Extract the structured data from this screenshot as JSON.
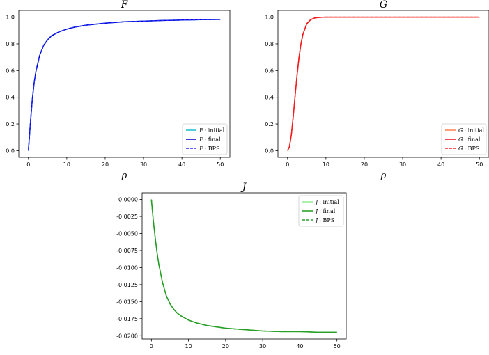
{
  "chart_data": [
    {
      "id": "F",
      "type": "line",
      "title": "F",
      "xlabel": "ρ",
      "ylabel": "",
      "xlim": [
        -2.5,
        52.5
      ],
      "ylim": [
        -0.05,
        1.05
      ],
      "xticks": [
        0,
        10,
        20,
        30,
        40,
        50
      ],
      "yticks": [
        0.0,
        0.2,
        0.4,
        0.6,
        0.8,
        1.0
      ],
      "ytick_labels": [
        "0.0",
        "0.2",
        "0.4",
        "0.6",
        "0.8",
        "1.0"
      ],
      "legend_position": "lower right",
      "grid": false,
      "series": [
        {
          "name": "F : initial",
          "var": "F",
          "label": ": initial",
          "color": "#17becf",
          "style": "solid",
          "x": [
            0,
            0.5,
            1,
            1.5,
            2,
            3,
            4,
            5,
            6,
            7,
            8,
            10,
            12,
            15,
            20,
            25,
            30,
            35,
            40,
            45,
            50
          ],
          "y": [
            0.0,
            0.2,
            0.38,
            0.51,
            0.6,
            0.72,
            0.79,
            0.83,
            0.86,
            0.875,
            0.89,
            0.91,
            0.925,
            0.94,
            0.955,
            0.965,
            0.97,
            0.975,
            0.978,
            0.981,
            0.983
          ]
        },
        {
          "name": "F : final",
          "var": "F",
          "label": ": final",
          "color": "#0000cc",
          "style": "solid",
          "x": [
            0,
            0.5,
            1,
            1.5,
            2,
            3,
            4,
            5,
            6,
            7,
            8,
            10,
            12,
            15,
            20,
            25,
            30,
            35,
            40,
            45,
            50
          ],
          "y": [
            0.0,
            0.2,
            0.38,
            0.51,
            0.6,
            0.72,
            0.79,
            0.83,
            0.86,
            0.875,
            0.89,
            0.91,
            0.925,
            0.94,
            0.955,
            0.965,
            0.97,
            0.975,
            0.978,
            0.981,
            0.983
          ]
        },
        {
          "name": "F : BPS",
          "var": "F",
          "label": ": BPS",
          "color": "#2b2bff",
          "style": "dashed",
          "x": [
            0,
            0.5,
            1,
            1.5,
            2,
            3,
            4,
            5,
            6,
            7,
            8,
            10,
            12,
            15,
            20,
            25,
            30,
            35,
            40,
            45,
            50
          ],
          "y": [
            0.0,
            0.2,
            0.38,
            0.51,
            0.6,
            0.72,
            0.79,
            0.83,
            0.86,
            0.875,
            0.89,
            0.91,
            0.925,
            0.94,
            0.955,
            0.965,
            0.97,
            0.975,
            0.978,
            0.981,
            0.983
          ]
        }
      ]
    },
    {
      "id": "G",
      "type": "line",
      "title": "G",
      "xlabel": "ρ",
      "ylabel": "",
      "xlim": [
        -2.5,
        52.5
      ],
      "ylim": [
        -0.05,
        1.05
      ],
      "xticks": [
        0,
        10,
        20,
        30,
        40,
        50
      ],
      "yticks": [
        0.0,
        0.2,
        0.4,
        0.6,
        0.8,
        1.0
      ],
      "ytick_labels": [
        "0.0",
        "0.2",
        "0.4",
        "0.6",
        "0.8",
        "1.0"
      ],
      "legend_position": "lower right",
      "grid": false,
      "series": [
        {
          "name": "G : initial",
          "var": "G",
          "label": ": initial",
          "color": "#ff7f50",
          "style": "solid",
          "x": [
            0,
            0.5,
            1,
            1.5,
            2,
            2.5,
            3,
            3.5,
            4,
            5,
            6,
            7,
            8,
            9,
            10,
            15,
            20,
            30,
            40,
            50
          ],
          "y": [
            0.0,
            0.03,
            0.12,
            0.26,
            0.42,
            0.57,
            0.7,
            0.8,
            0.87,
            0.95,
            0.98,
            0.993,
            0.997,
            0.999,
            1.0,
            1.0,
            1.0,
            1.0,
            1.0,
            1.0
          ]
        },
        {
          "name": "G : final",
          "var": "G",
          "label": ": final",
          "color": "#e8141e",
          "style": "solid",
          "x": [
            0,
            0.5,
            1,
            1.5,
            2,
            2.5,
            3,
            3.5,
            4,
            5,
            6,
            7,
            8,
            9,
            10,
            15,
            20,
            30,
            40,
            50
          ],
          "y": [
            0.0,
            0.03,
            0.12,
            0.26,
            0.42,
            0.57,
            0.7,
            0.8,
            0.87,
            0.95,
            0.98,
            0.993,
            0.997,
            0.999,
            1.0,
            1.0,
            1.0,
            1.0,
            1.0,
            1.0
          ]
        },
        {
          "name": "G : BPS",
          "var": "G",
          "label": ": BPS",
          "color": "#ff2020",
          "style": "dashed",
          "x": [
            0,
            0.5,
            1,
            1.5,
            2,
            2.5,
            3,
            3.5,
            4,
            5,
            6,
            7,
            8,
            9,
            10,
            15,
            20,
            30,
            40,
            50
          ],
          "y": [
            0.0,
            0.03,
            0.12,
            0.26,
            0.42,
            0.57,
            0.7,
            0.8,
            0.87,
            0.95,
            0.98,
            0.993,
            0.997,
            0.999,
            1.0,
            1.0,
            1.0,
            1.0,
            1.0,
            1.0
          ]
        }
      ]
    },
    {
      "id": "J",
      "type": "line",
      "title": "J",
      "xlabel": "ρ",
      "ylabel": "",
      "xlim": [
        -2.5,
        52.5
      ],
      "ylim": [
        -0.02048,
        0.00098
      ],
      "xticks": [
        0,
        10,
        20,
        30,
        40,
        50
      ],
      "yticks": [
        0.0,
        -0.0025,
        -0.005,
        -0.0075,
        -0.01,
        -0.0125,
        -0.015,
        -0.0175,
        -0.02
      ],
      "ytick_labels": [
        "0.0000",
        "-0.0025",
        "-0.0050",
        "-0.0075",
        "-0.0100",
        "-0.0125",
        "-0.0150",
        "-0.0175",
        "-0.0200"
      ],
      "legend_position": "upper right",
      "grid": false,
      "series": [
        {
          "name": "J : initial",
          "var": "J",
          "label": ": initial",
          "color": "#90ee90",
          "style": "solid",
          "x": [
            0,
            0.5,
            1,
            1.5,
            2,
            3,
            4,
            5,
            6,
            7,
            8,
            10,
            12,
            15,
            20,
            25,
            30,
            35,
            40,
            45,
            50
          ],
          "y": [
            0.0,
            -0.003,
            -0.0055,
            -0.0077,
            -0.0095,
            -0.0122,
            -0.0141,
            -0.0153,
            -0.0161,
            -0.0167,
            -0.0171,
            -0.0177,
            -0.0181,
            -0.0185,
            -0.0189,
            -0.0191,
            -0.0193,
            -0.0194,
            -0.0194,
            -0.0195,
            -0.0195
          ]
        },
        {
          "name": "J : final",
          "var": "J",
          "label": ": final",
          "color": "#1f9a1f",
          "style": "solid",
          "x": [
            0,
            0.5,
            1,
            1.5,
            2,
            3,
            4,
            5,
            6,
            7,
            8,
            10,
            12,
            15,
            20,
            25,
            30,
            35,
            40,
            45,
            50
          ],
          "y": [
            0.0,
            -0.003,
            -0.0055,
            -0.0077,
            -0.0095,
            -0.0122,
            -0.0141,
            -0.0153,
            -0.0161,
            -0.0167,
            -0.0171,
            -0.0177,
            -0.0181,
            -0.0185,
            -0.0189,
            -0.0191,
            -0.0193,
            -0.0194,
            -0.0194,
            -0.0195,
            -0.0195
          ]
        },
        {
          "name": "J : BPS",
          "var": "J",
          "label": ": BPS",
          "color": "#2ca02c",
          "style": "dashed",
          "x": [
            0,
            0.5,
            1,
            1.5,
            2,
            3,
            4,
            5,
            6,
            7,
            8,
            10,
            12,
            15,
            20,
            25,
            30,
            35,
            40,
            45,
            50
          ],
          "y": [
            0.0,
            -0.003,
            -0.0055,
            -0.0077,
            -0.0095,
            -0.0122,
            -0.0141,
            -0.0153,
            -0.0161,
            -0.0167,
            -0.0171,
            -0.0177,
            -0.0181,
            -0.0185,
            -0.0189,
            -0.0191,
            -0.0193,
            -0.0194,
            -0.0194,
            -0.0195,
            -0.0195
          ]
        }
      ]
    }
  ]
}
